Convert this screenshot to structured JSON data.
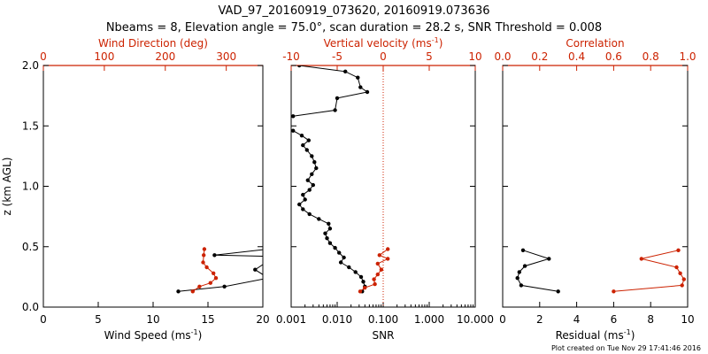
{
  "title_line1": "VAD_97_20160919_073620, 20160919.073636",
  "title_line2": "Nbeams = 8, Elevation angle = 75.0°, scan duration = 28.2 s, SNR Threshold = 0.008",
  "footer": "Plot created on Tue Nov 29 17:41:46 2016",
  "colors": {
    "black": "#000000",
    "red": "#cc2200",
    "dotted_red": "#cc2200"
  },
  "chart_data": [
    {
      "type": "line",
      "panel": "wind",
      "ylabel": "z (km AGL)",
      "ylim": [
        0,
        2.0
      ],
      "yticks": [
        "0.0",
        "0.5",
        "1.0",
        "1.5",
        "2.0"
      ],
      "xlabel_bottom": "Wind Speed (ms",
      "xlabel_bottom_exp": "-1",
      "xlabel_bottom_close": ")",
      "xlim_bottom": [
        0,
        20
      ],
      "xticks_bottom": [
        "0",
        "5",
        "10",
        "15",
        "20"
      ],
      "xlabel_top": "Wind Direction (deg)",
      "xlim_top": [
        0,
        360
      ],
      "xticks_top": [
        "0",
        "100",
        "200",
        "300"
      ],
      "series": [
        {
          "axis": "bottom",
          "color": "#000000",
          "points": [
            [
              12.3,
              0.13
            ],
            [
              16.5,
              0.17
            ],
            [
              20.5,
              0.24
            ],
            [
              19.3,
              0.31
            ],
            [
              20.3,
              0.37
            ],
            [
              20.6,
              0.42
            ],
            [
              15.6,
              0.43
            ],
            [
              20.4,
              0.48
            ]
          ]
        },
        {
          "axis": "top",
          "color": "#cc2200",
          "points": [
            [
              245,
              0.13
            ],
            [
              256,
              0.17
            ],
            [
              274,
              0.2
            ],
            [
              283,
              0.24
            ],
            [
              279,
              0.28
            ],
            [
              268,
              0.33
            ],
            [
              262,
              0.37
            ],
            [
              263,
              0.43
            ],
            [
              264,
              0.48
            ]
          ]
        }
      ]
    },
    {
      "type": "line",
      "panel": "snr",
      "ylim": [
        0,
        2.0
      ],
      "xlabel_bottom": "SNR",
      "xscale": "log",
      "xlim_bottom": [
        0.001,
        10
      ],
      "xticks_bottom": [
        "0.001",
        "0.010",
        "0.100",
        "1.000",
        "10.000"
      ],
      "xlabel_top": "Vertical velocity (ms",
      "xlabel_top_exp": "-1",
      "xlabel_top_close": ")",
      "xlim_top": [
        -10,
        10
      ],
      "xticks_top": [
        "-10",
        "-5",
        "0",
        "5",
        "10"
      ],
      "series": [
        {
          "axis": "bottom",
          "color": "#000000",
          "points": [
            [
              0.035,
              0.13
            ],
            [
              0.04,
              0.17
            ],
            [
              0.037,
              0.21
            ],
            [
              0.033,
              0.25
            ],
            [
              0.025,
              0.29
            ],
            [
              0.018,
              0.33
            ],
            [
              0.012,
              0.37
            ],
            [
              0.014,
              0.41
            ],
            [
              0.011,
              0.45
            ],
            [
              0.009,
              0.49
            ],
            [
              0.007,
              0.53
            ],
            [
              0.006,
              0.57
            ],
            [
              0.0055,
              0.61
            ],
            [
              0.007,
              0.65
            ],
            [
              0.0065,
              0.69
            ],
            [
              0.004,
              0.73
            ],
            [
              0.0025,
              0.77
            ],
            [
              0.0018,
              0.81
            ],
            [
              0.0015,
              0.85
            ],
            [
              0.002,
              0.89
            ],
            [
              0.0018,
              0.93
            ],
            [
              0.0025,
              0.97
            ],
            [
              0.003,
              1.01
            ],
            [
              0.0023,
              1.05
            ],
            [
              0.0028,
              1.1
            ],
            [
              0.0035,
              1.15
            ],
            [
              0.0032,
              1.2
            ],
            [
              0.0028,
              1.25
            ],
            [
              0.0022,
              1.3
            ],
            [
              0.0018,
              1.34
            ],
            [
              0.0024,
              1.38
            ],
            [
              0.0017,
              1.42
            ],
            [
              0.0011,
              1.46
            ]
          ]
        },
        {
          "axis": "bottom",
          "color": "#000000",
          "points": [
            [
              0.0011,
              1.58
            ],
            [
              0.009,
              1.63
            ],
            [
              0.01,
              1.73
            ],
            [
              0.045,
              1.78
            ],
            [
              0.032,
              1.82
            ],
            [
              0.028,
              1.9
            ],
            [
              0.015,
              1.95
            ],
            [
              0.0015,
              2.0
            ]
          ]
        },
        {
          "axis": "top",
          "color": "#cc2200",
          "points": [
            [
              -2.5,
              0.13
            ],
            [
              -2.0,
              0.16
            ],
            [
              -0.9,
              0.19
            ],
            [
              -1.0,
              0.23
            ],
            [
              -0.6,
              0.27
            ],
            [
              -0.2,
              0.31
            ],
            [
              -0.6,
              0.36
            ],
            [
              0.5,
              0.4
            ],
            [
              -0.4,
              0.43
            ],
            [
              0.5,
              0.48
            ]
          ]
        }
      ],
      "reference_line": {
        "axis": "top",
        "x": 0,
        "style": "dotted",
        "color": "#cc2200"
      }
    },
    {
      "type": "line",
      "panel": "residual",
      "ylim": [
        0,
        2.0
      ],
      "xlabel_bottom": "Residual (ms",
      "xlabel_bottom_exp": "-1",
      "xlabel_bottom_close": ")",
      "xlim_bottom": [
        0,
        10
      ],
      "xticks_bottom": [
        "0",
        "2",
        "4",
        "6",
        "8",
        "10"
      ],
      "xlabel_top": "Correlation",
      "xlim_top": [
        0,
        1.0
      ],
      "xticks_top": [
        "0.0",
        "0.2",
        "0.4",
        "0.6",
        "0.8",
        "1.0"
      ],
      "series": [
        {
          "axis": "bottom",
          "color": "#000000",
          "points": [
            [
              3.0,
              0.13
            ],
            [
              1.0,
              0.18
            ],
            [
              0.8,
              0.24
            ],
            [
              0.9,
              0.29
            ],
            [
              1.2,
              0.34
            ],
            [
              2.5,
              0.4
            ],
            [
              1.1,
              0.47
            ]
          ]
        },
        {
          "axis": "top",
          "color": "#cc2200",
          "points": [
            [
              0.6,
              0.13
            ],
            [
              0.97,
              0.18
            ],
            [
              0.98,
              0.23
            ],
            [
              0.96,
              0.28
            ],
            [
              0.94,
              0.33
            ],
            [
              0.75,
              0.4
            ],
            [
              0.95,
              0.47
            ]
          ]
        }
      ]
    }
  ]
}
